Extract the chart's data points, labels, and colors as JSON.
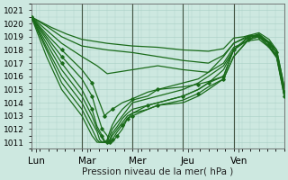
{
  "xlabel": "Pression niveau de la mer( hPa )",
  "xlim": [
    0,
    5
  ],
  "ylim": [
    1010.5,
    1021.5
  ],
  "yticks": [
    1011,
    1012,
    1013,
    1014,
    1015,
    1016,
    1017,
    1018,
    1019,
    1020,
    1021
  ],
  "xtick_labels": [
    "Lun",
    "Mar",
    "Mer",
    "Jeu",
    "Ven"
  ],
  "xtick_positions": [
    0.1,
    1.1,
    2.1,
    3.1,
    4.1
  ],
  "vlines": [
    1.0,
    2.0,
    3.0,
    4.0
  ],
  "bg_color": "#cde8e0",
  "grid_color": "#a8cfc5",
  "line_color": "#1a6b1a",
  "lines": [
    [
      0.0,
      1020.5,
      0.15,
      1020.2,
      0.4,
      1019.7,
      0.7,
      1019.2,
      1.0,
      1018.8,
      1.5,
      1018.5,
      2.0,
      1018.3,
      2.5,
      1018.2,
      3.0,
      1018.0,
      3.5,
      1017.9,
      3.8,
      1018.1,
      4.0,
      1018.9,
      4.2,
      1019.0,
      4.3,
      1019.1,
      4.5,
      1019.0,
      4.7,
      1018.5,
      4.85,
      1017.8,
      5.0,
      1015.0
    ],
    [
      0.0,
      1020.5,
      0.3,
      1019.8,
      0.6,
      1019.0,
      1.0,
      1018.3,
      1.5,
      1018.0,
      2.0,
      1017.8,
      2.5,
      1017.5,
      3.0,
      1017.2,
      3.5,
      1017.0,
      3.8,
      1017.6,
      4.0,
      1018.5,
      4.3,
      1019.0,
      4.5,
      1019.1,
      4.7,
      1018.6,
      4.85,
      1018.0,
      5.0,
      1015.2
    ],
    [
      0.0,
      1020.5,
      0.3,
      1019.5,
      0.6,
      1018.5,
      1.0,
      1017.5,
      1.3,
      1016.8,
      1.5,
      1016.2,
      2.0,
      1016.5,
      2.5,
      1016.8,
      3.0,
      1016.5,
      3.5,
      1016.3,
      3.8,
      1017.0,
      4.0,
      1018.2,
      4.3,
      1018.7,
      4.5,
      1018.8,
      4.7,
      1018.2,
      4.85,
      1017.5,
      5.0,
      1014.8
    ],
    [
      0.0,
      1020.5,
      0.3,
      1019.2,
      0.6,
      1018.0,
      1.0,
      1016.5,
      1.2,
      1015.5,
      1.35,
      1014.0,
      1.45,
      1013.0,
      1.5,
      1013.2,
      1.6,
      1013.5,
      1.8,
      1014.0,
      2.0,
      1014.3,
      2.3,
      1014.8,
      2.5,
      1015.0,
      3.0,
      1015.2,
      3.3,
      1015.4,
      3.5,
      1015.6,
      3.8,
      1016.0,
      4.0,
      1018.0,
      4.3,
      1019.0,
      4.5,
      1019.1,
      4.7,
      1018.5,
      4.85,
      1017.8,
      5.0,
      1014.8
    ],
    [
      0.0,
      1020.5,
      0.3,
      1019.0,
      0.6,
      1017.5,
      1.0,
      1015.8,
      1.2,
      1014.5,
      1.3,
      1013.2,
      1.4,
      1012.0,
      1.5,
      1011.5,
      1.55,
      1011.0,
      1.6,
      1011.0,
      1.7,
      1011.5,
      1.8,
      1012.0,
      1.9,
      1012.8,
      2.0,
      1013.2,
      2.3,
      1013.8,
      2.5,
      1014.0,
      3.0,
      1014.5,
      3.3,
      1015.0,
      3.5,
      1015.5,
      3.8,
      1016.0,
      4.0,
      1018.0,
      4.3,
      1019.0,
      4.5,
      1019.0,
      4.7,
      1018.5,
      4.85,
      1017.8,
      5.0,
      1014.7
    ],
    [
      0.0,
      1020.5,
      0.3,
      1018.8,
      0.6,
      1017.0,
      1.0,
      1015.0,
      1.2,
      1013.5,
      1.3,
      1012.2,
      1.4,
      1011.5,
      1.45,
      1011.1,
      1.5,
      1011.0,
      1.55,
      1011.0,
      1.6,
      1011.2,
      1.7,
      1011.8,
      1.8,
      1012.3,
      1.9,
      1012.8,
      2.0,
      1013.0,
      2.3,
      1013.5,
      2.5,
      1013.8,
      3.0,
      1014.2,
      3.3,
      1014.7,
      3.5,
      1015.2,
      3.8,
      1015.8,
      4.0,
      1017.5,
      4.3,
      1018.8,
      4.5,
      1019.0,
      4.7,
      1018.3,
      4.85,
      1017.5,
      5.0,
      1014.5
    ],
    [
      0.0,
      1020.5,
      0.3,
      1018.5,
      0.6,
      1016.5,
      1.0,
      1014.5,
      1.2,
      1013.0,
      1.3,
      1012.0,
      1.4,
      1011.3,
      1.45,
      1011.0,
      1.5,
      1011.0,
      1.55,
      1011.1,
      1.6,
      1011.5,
      1.7,
      1012.0,
      1.8,
      1012.5,
      1.9,
      1013.0,
      2.0,
      1013.2,
      2.3,
      1013.5,
      2.5,
      1013.8,
      3.0,
      1014.0,
      3.3,
      1014.5,
      3.5,
      1015.0,
      3.8,
      1015.8,
      4.0,
      1017.5,
      4.3,
      1018.8,
      4.5,
      1019.0,
      4.7,
      1018.2,
      4.85,
      1017.4,
      5.0,
      1014.5
    ],
    [
      0.0,
      1020.5,
      0.3,
      1018.2,
      0.6,
      1016.0,
      1.0,
      1014.0,
      1.2,
      1012.5,
      1.3,
      1011.8,
      1.35,
      1011.2,
      1.4,
      1011.0,
      1.45,
      1011.0,
      1.5,
      1011.0,
      1.55,
      1011.2,
      1.6,
      1011.7,
      1.7,
      1012.2,
      1.8,
      1012.8,
      1.9,
      1013.2,
      2.0,
      1013.5,
      2.3,
      1013.8,
      2.5,
      1014.0,
      3.0,
      1014.5,
      3.3,
      1015.0,
      3.5,
      1015.5,
      3.8,
      1016.5,
      4.0,
      1018.0,
      4.3,
      1018.8,
      4.5,
      1019.2,
      4.7,
      1018.5,
      4.85,
      1017.5,
      5.0,
      1015.0
    ],
    [
      0.0,
      1020.5,
      0.3,
      1018.0,
      0.6,
      1015.5,
      1.0,
      1013.5,
      1.2,
      1012.0,
      1.3,
      1011.2,
      1.35,
      1011.0,
      1.4,
      1011.0,
      1.45,
      1011.0,
      1.5,
      1011.1,
      1.55,
      1011.5,
      1.6,
      1012.0,
      1.7,
      1012.5,
      1.8,
      1013.0,
      1.9,
      1013.5,
      2.0,
      1014.0,
      2.3,
      1014.3,
      2.5,
      1014.5,
      3.0,
      1015.0,
      3.3,
      1015.5,
      3.5,
      1016.0,
      3.8,
      1016.8,
      4.0,
      1018.0,
      4.3,
      1019.0,
      4.5,
      1019.2,
      4.7,
      1018.6,
      4.85,
      1017.8,
      5.0,
      1015.0
    ],
    [
      0.0,
      1020.5,
      0.3,
      1017.5,
      0.6,
      1015.0,
      1.0,
      1013.0,
      1.2,
      1011.5,
      1.3,
      1011.0,
      1.35,
      1011.0,
      1.4,
      1011.0,
      1.45,
      1011.0,
      1.5,
      1011.2,
      1.55,
      1011.8,
      1.6,
      1012.3,
      1.7,
      1013.0,
      1.8,
      1013.5,
      2.0,
      1014.2,
      2.3,
      1014.5,
      2.5,
      1015.0,
      3.0,
      1015.5,
      3.3,
      1015.8,
      3.5,
      1016.3,
      3.8,
      1017.5,
      4.0,
      1018.5,
      4.3,
      1019.1,
      4.5,
      1019.3,
      4.7,
      1018.8,
      4.85,
      1018.0,
      5.0,
      1015.2
    ]
  ],
  "marker_lines": [
    3,
    4,
    5
  ],
  "dot_color": "#1a6b1a"
}
